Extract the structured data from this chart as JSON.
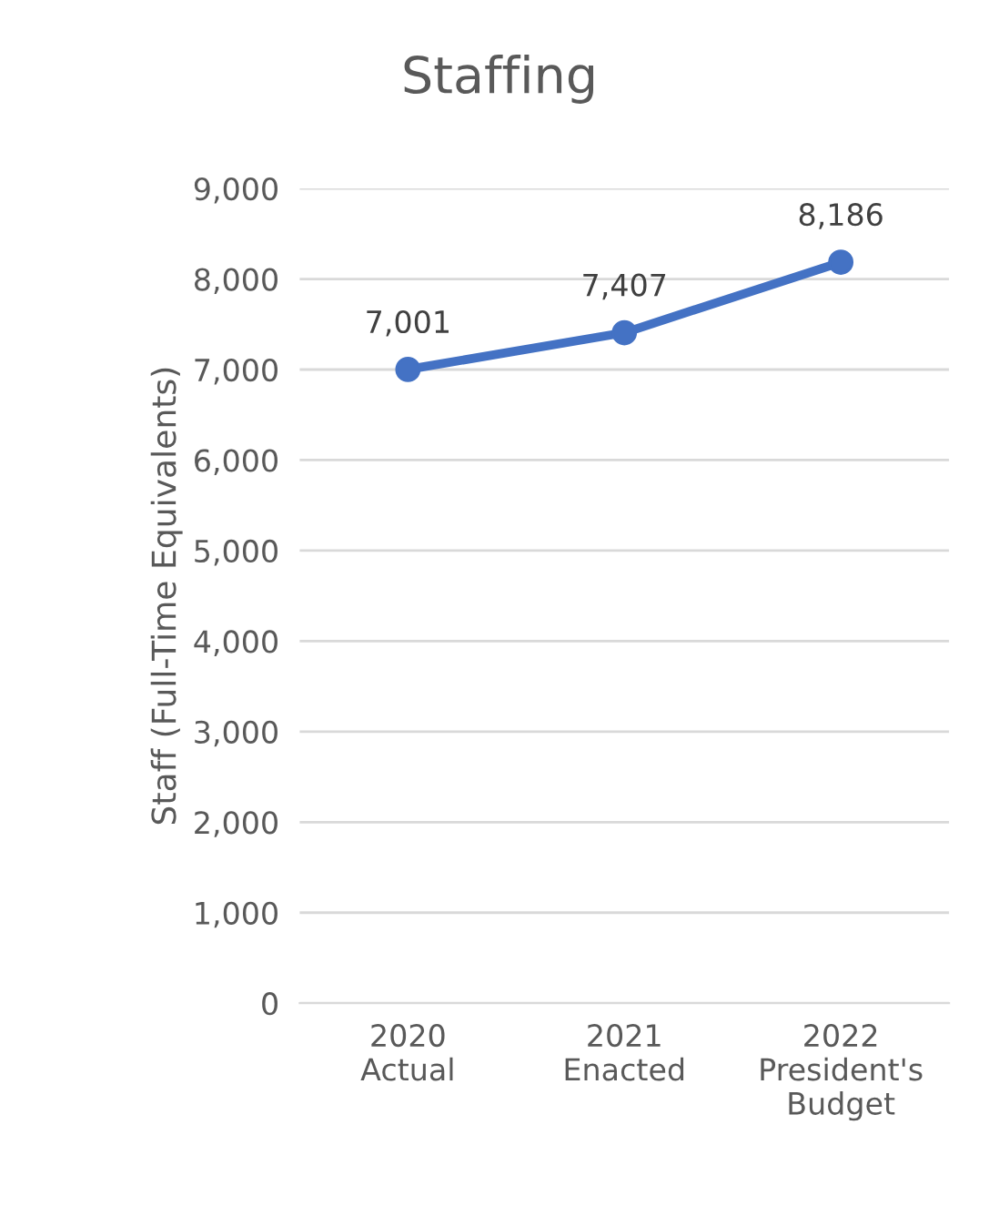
{
  "chart_data": {
    "type": "line",
    "title": "Staffing",
    "ylabel": "Staff (Full-Time Equivalents)",
    "categories": [
      "2020\nActual",
      "2021\nEnacted",
      "2022\nPresident's\nBudget"
    ],
    "series": [
      {
        "color": "#4472c4",
        "values": [
          7001,
          7407,
          8186
        ],
        "value_labels": [
          "7,001",
          "7,407",
          "8,186"
        ]
      }
    ],
    "ylim": [
      0,
      9000
    ],
    "yticks": [
      {
        "value": 0,
        "label": "0"
      },
      {
        "value": 1000,
        "label": "1,000"
      },
      {
        "value": 2000,
        "label": "2,000"
      },
      {
        "value": 3000,
        "label": "3,000"
      },
      {
        "value": 4000,
        "label": "4,000"
      },
      {
        "value": 5000,
        "label": "5,000"
      },
      {
        "value": 6000,
        "label": "6,000"
      },
      {
        "value": 7000,
        "label": "7,000"
      },
      {
        "value": 8000,
        "label": "8,000"
      },
      {
        "value": 9000,
        "label": "9,000"
      }
    ],
    "grid": "y",
    "marker": "circle",
    "line_style": "solid"
  }
}
